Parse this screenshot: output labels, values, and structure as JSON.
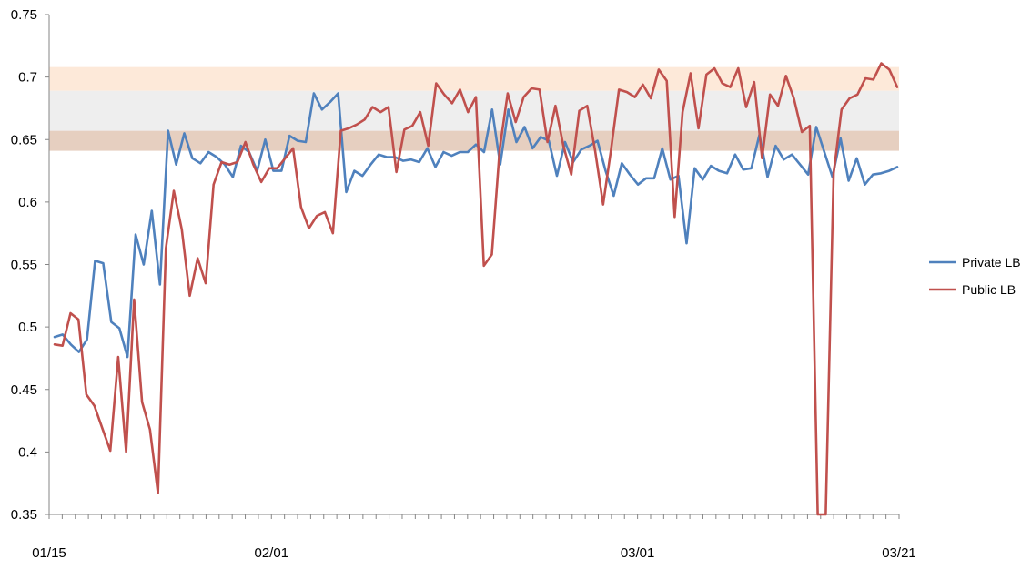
{
  "chart_data": {
    "type": "line",
    "title": "",
    "xlabel": "",
    "ylabel": "",
    "ylim": [
      0.35,
      0.75
    ],
    "yticks": [
      "0.35",
      "0.4",
      "0.45",
      "0.5",
      "0.55",
      "0.6",
      "0.65",
      "0.7",
      "0.75"
    ],
    "yticks_values": [
      0.35,
      0.4,
      0.45,
      0.5,
      0.55,
      0.6,
      0.65,
      0.7,
      0.75
    ],
    "xticks": [
      {
        "label": "01/15",
        "day": 0
      },
      {
        "label": "02/01",
        "day": 17
      },
      {
        "label": "03/01",
        "day": 45
      },
      {
        "label": "03/21",
        "day": 65
      }
    ],
    "x_range": [
      0,
      65
    ],
    "grid": false,
    "legend_position": "right",
    "bands": [
      {
        "from": 0.689,
        "to": 0.708,
        "color": "#FDE9D9"
      },
      {
        "from": 0.657,
        "to": 0.689,
        "color": "#EEEEEE"
      },
      {
        "from": 0.641,
        "to": 0.657,
        "color": "#E6CFC0"
      }
    ],
    "series": [
      {
        "name": "Private LB",
        "color": "#4F81BD",
        "values": [
          0.492,
          0.494,
          0.486,
          0.48,
          0.49,
          0.553,
          0.551,
          0.504,
          0.499,
          0.476,
          0.574,
          0.55,
          0.593,
          0.534,
          0.657,
          0.63,
          0.655,
          0.635,
          0.631,
          0.64,
          0.636,
          0.63,
          0.62,
          0.645,
          0.64,
          0.625,
          0.65,
          0.625,
          0.625,
          0.653,
          0.649,
          0.648,
          0.687,
          0.674,
          0.68,
          0.687,
          0.608,
          0.625,
          0.621,
          0.63,
          0.638,
          0.636,
          0.636,
          0.633,
          0.634,
          0.632,
          0.643,
          0.628,
          0.64,
          0.637,
          0.64,
          0.64,
          0.646,
          0.64,
          0.674,
          0.63,
          0.674,
          0.648,
          0.66,
          0.643,
          0.652,
          0.649,
          0.621,
          0.648,
          0.632,
          0.642,
          0.645,
          0.649,
          0.625,
          0.605,
          0.631,
          0.622,
          0.614,
          0.619,
          0.619,
          0.643,
          0.618,
          0.621,
          0.567,
          0.627,
          0.618,
          0.629,
          0.625,
          0.623,
          0.638,
          0.626,
          0.627,
          0.654,
          0.62,
          0.645,
          0.634,
          0.638,
          0.63,
          0.622,
          0.66,
          0.64,
          0.62,
          0.651,
          0.617,
          0.635,
          0.614,
          0.622,
          0.623,
          0.625,
          0.628
        ]
      },
      {
        "name": "Public LB",
        "color": "#C0504D",
        "values": [
          0.486,
          0.485,
          0.511,
          0.506,
          0.446,
          0.437,
          0.419,
          0.401,
          0.476,
          0.4,
          0.522,
          0.44,
          0.418,
          0.367,
          0.563,
          0.609,
          0.578,
          0.525,
          0.555,
          0.535,
          0.614,
          0.632,
          0.63,
          0.632,
          0.648,
          0.63,
          0.616,
          0.627,
          0.627,
          0.635,
          0.643,
          0.596,
          0.579,
          0.589,
          0.592,
          0.575,
          0.657,
          0.659,
          0.662,
          0.666,
          0.676,
          0.672,
          0.676,
          0.624,
          0.658,
          0.661,
          0.672,
          0.645,
          0.695,
          0.686,
          0.679,
          0.69,
          0.672,
          0.684,
          0.549,
          0.558,
          0.643,
          0.687,
          0.664,
          0.684,
          0.691,
          0.69,
          0.648,
          0.677,
          0.645,
          0.622,
          0.673,
          0.677,
          0.641,
          0.598,
          0.642,
          0.69,
          0.688,
          0.684,
          0.694,
          0.683,
          0.706,
          0.697,
          0.588,
          0.672,
          0.703,
          0.659,
          0.702,
          0.707,
          0.695,
          0.692,
          0.707,
          0.676,
          0.696,
          0.635,
          0.686,
          0.677,
          0.701,
          0.683,
          0.656,
          0.661,
          0.35,
          0.35,
          0.623,
          0.674,
          0.683,
          0.686,
          0.699,
          0.698,
          0.711,
          0.706,
          0.692
        ]
      }
    ]
  }
}
